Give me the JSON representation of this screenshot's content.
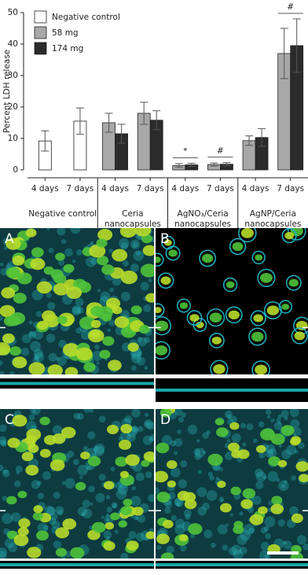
{
  "chart_data": {
    "type": "bar",
    "y_label": "Percent LDH release",
    "categories": [
      "4 days",
      "7 days",
      "4 days",
      "7 days",
      "4 days",
      "7 days",
      "4 days",
      "7 days"
    ],
    "groups": [
      [
        "Negative control"
      ],
      [
        "Ceria",
        "nanocapsules"
      ],
      [
        "AgNO₃/Ceria",
        "nanocapsules"
      ],
      [
        "AgNP/Ceria",
        "nanocapsules"
      ]
    ],
    "series": [
      {
        "name": "Negative control",
        "color": "#ffffff",
        "values": [
          9.2,
          15.5,
          null,
          null,
          null,
          null,
          null,
          null
        ],
        "errors": [
          3.2,
          4.2,
          null,
          null,
          null,
          null,
          null,
          null
        ]
      },
      {
        "name": "58 mg",
        "color": "#a8a8a8",
        "values": [
          null,
          null,
          15,
          18,
          1.4,
          1.7,
          9.3,
          37
        ],
        "errors": [
          null,
          null,
          3,
          3.5,
          0.6,
          0.5,
          1.5,
          8
        ]
      },
      {
        "name": "174 mg",
        "color": "#2b2b2b",
        "values": [
          null,
          null,
          11.5,
          15.8,
          1.6,
          1.8,
          10.3,
          39.5
        ],
        "errors": [
          null,
          null,
          3,
          3,
          0.5,
          0.5,
          2.8,
          8.5
        ]
      }
    ],
    "annotations": [
      "*",
      "#",
      "#"
    ],
    "ylim": [
      0,
      52
    ],
    "yticks": [
      0,
      10,
      20,
      30,
      40,
      50
    ],
    "legend": "upper left"
  },
  "panels": [
    "A",
    "B",
    "C",
    "D"
  ]
}
